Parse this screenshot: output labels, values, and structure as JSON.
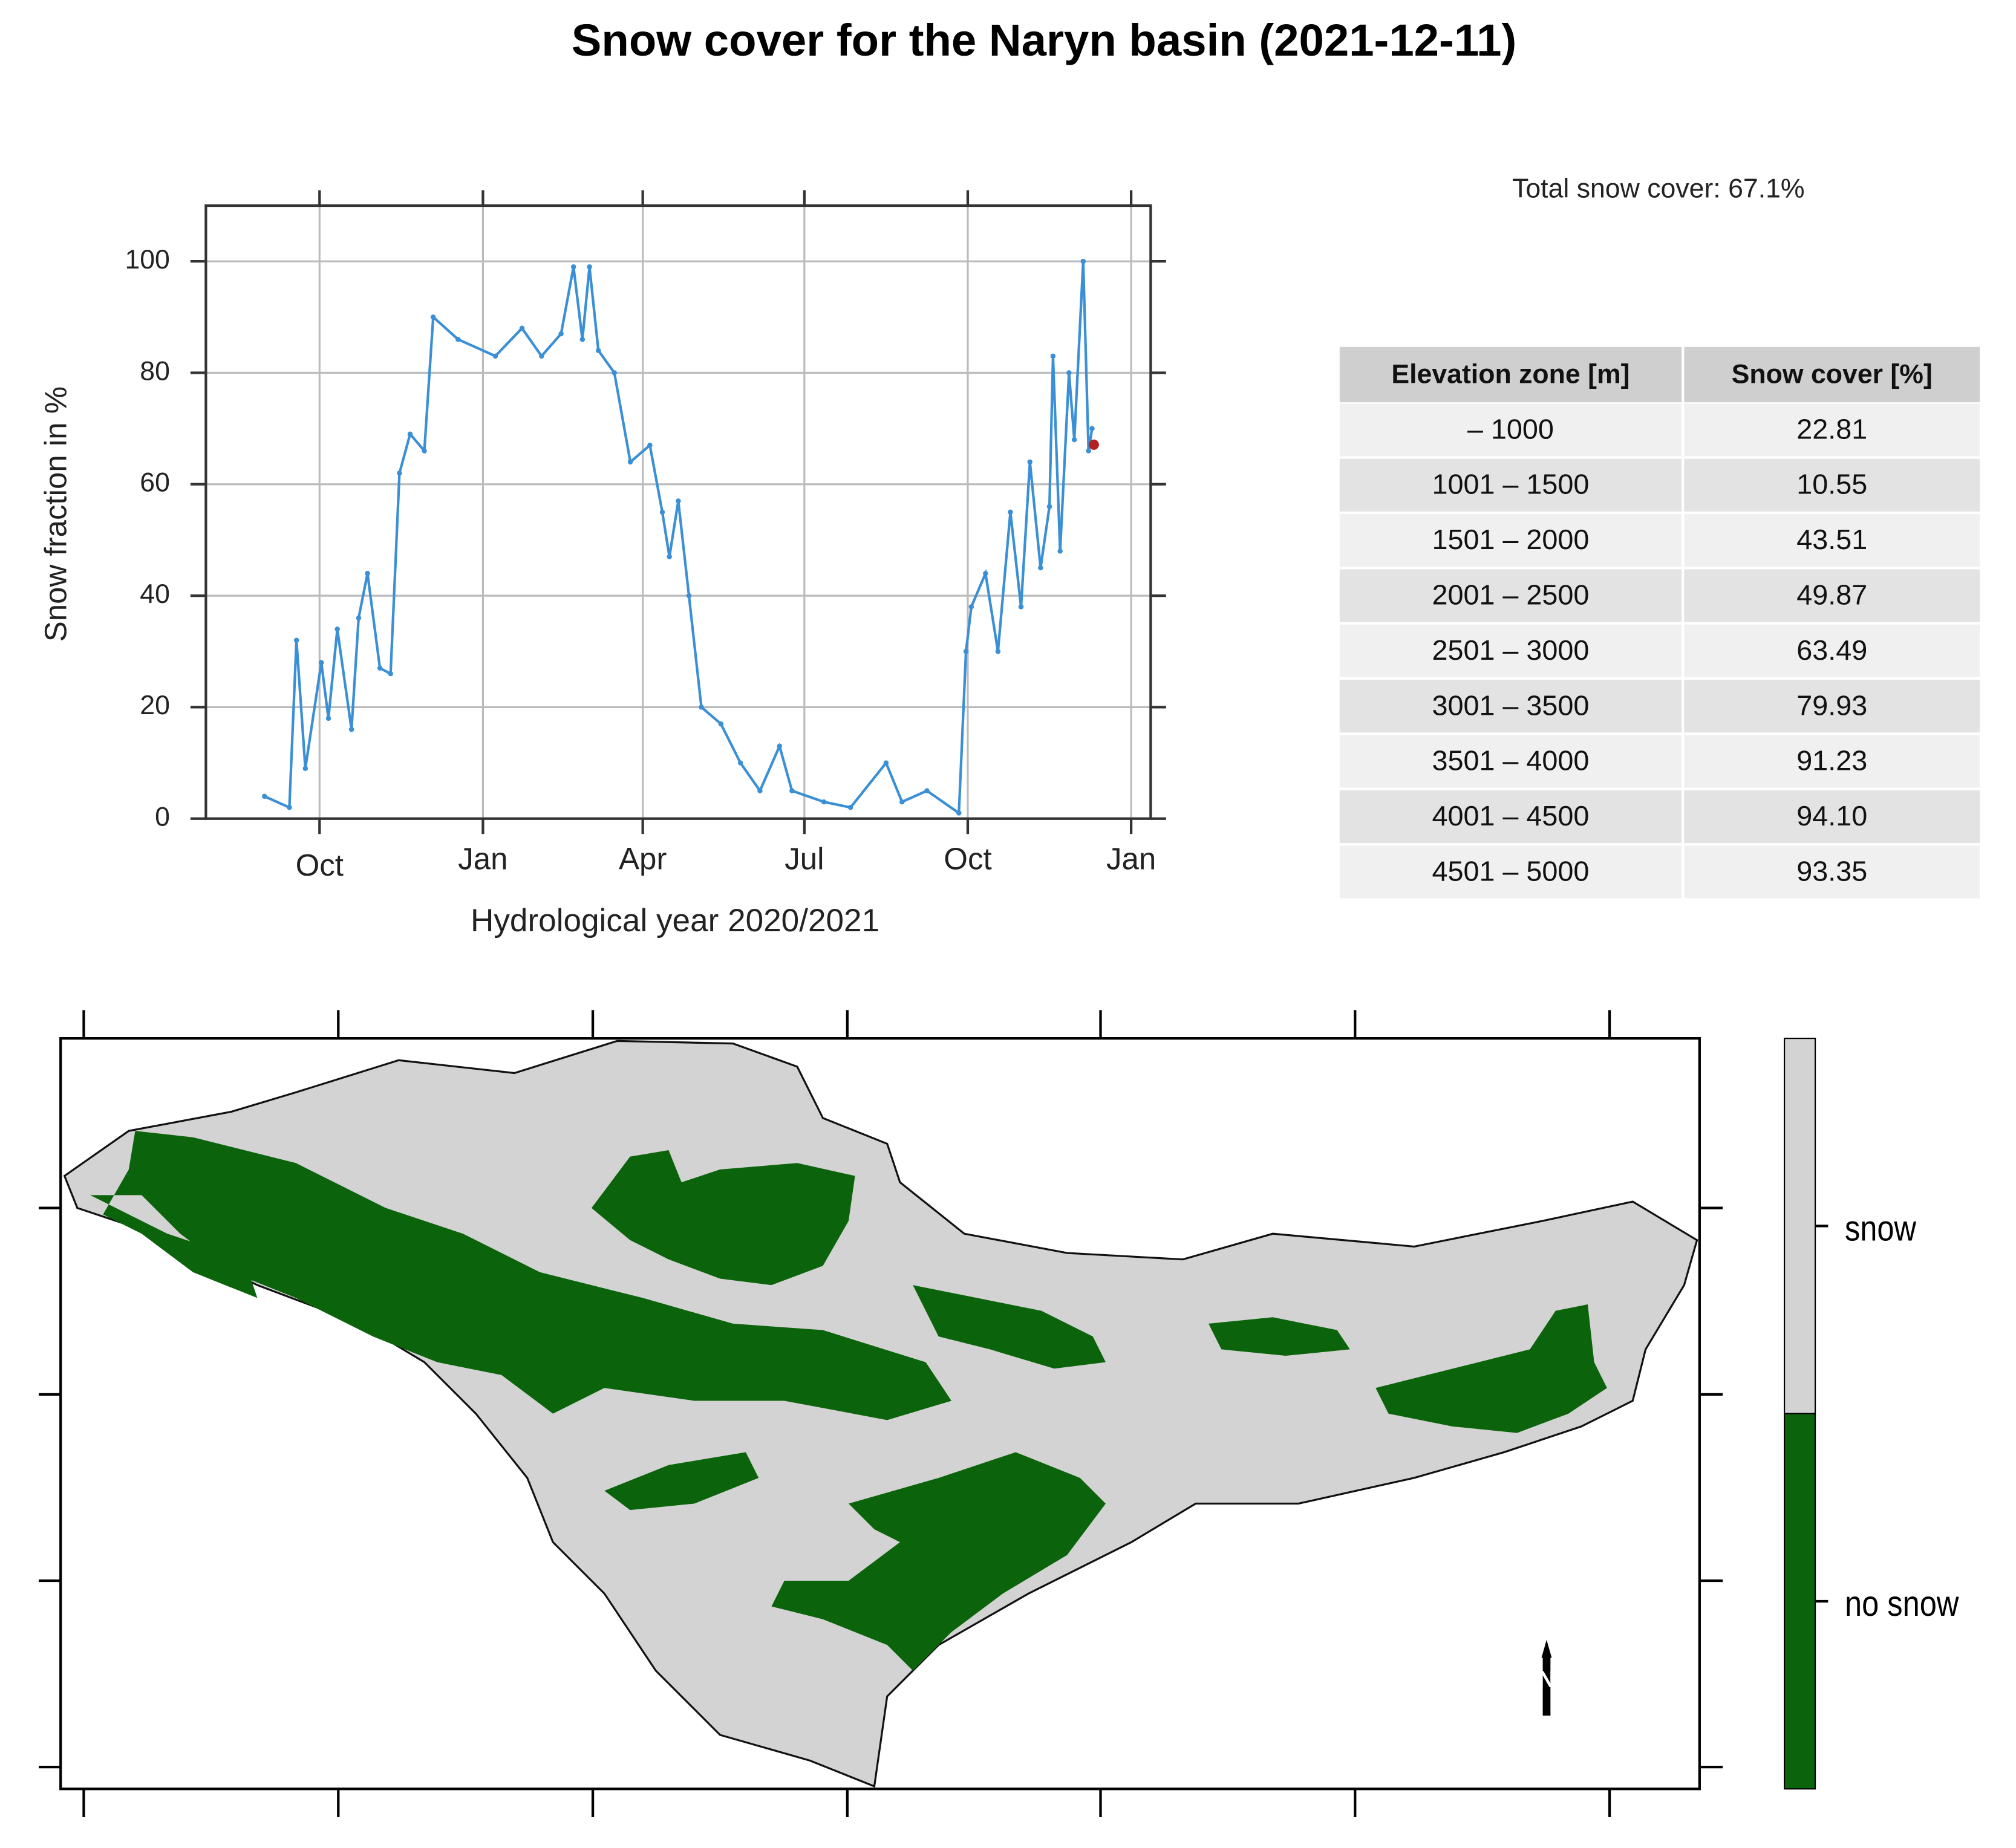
{
  "title": "Snow cover for the Naryn basin (2021-12-11)",
  "chart_data": {
    "type": "line",
    "y_label": "Snow fraction in %",
    "x_label": "Hydrological year 2020/2021",
    "color": "#3a8fd6",
    "grid": true,
    "x": [
      -1,
      13,
      17,
      22,
      31,
      35,
      40,
      48,
      52,
      57,
      64,
      70,
      75,
      81,
      89,
      94,
      108,
      129,
      144,
      155,
      166,
      173,
      178,
      182,
      187,
      196,
      205,
      216,
      223,
      227,
      232,
      238,
      245,
      256,
      267,
      278,
      289,
      296,
      314,
      329,
      349,
      358,
      372,
      390,
      394,
      397,
      405,
      412,
      419,
      425,
      430,
      436,
      441,
      443,
      447,
      452,
      455,
      460,
      463,
      465
    ],
    "values": [
      4,
      2,
      32,
      9,
      28,
      18,
      34,
      16,
      36,
      44,
      27,
      26,
      62,
      69,
      66,
      90,
      86,
      83,
      88,
      83,
      87,
      99,
      86,
      99,
      84,
      80,
      64,
      67,
      55,
      47,
      57,
      40,
      20,
      17,
      10,
      5,
      13,
      5,
      3,
      2,
      10,
      3,
      5,
      1,
      30,
      38,
      44,
      30,
      55,
      38,
      64,
      45,
      56,
      83,
      48,
      80,
      68,
      100,
      66,
      70
    ],
    "current": {
      "x": 466,
      "value": 67.1,
      "color": "#b22222"
    },
    "xlim": [
      -34,
      498
    ],
    "xticks": [
      {
        "value": 30,
        "label": "Oct"
      },
      {
        "value": 122,
        "label": "Jan"
      },
      {
        "value": 212,
        "label": "Apr"
      },
      {
        "value": 303,
        "label": "Jul"
      },
      {
        "value": 395,
        "label": "Oct"
      },
      {
        "value": 487,
        "label": "Jan"
      }
    ],
    "ylim": [
      0,
      110
    ],
    "yticks": [
      0,
      20,
      40,
      60,
      80,
      100
    ]
  },
  "total_snow_cover": "Total snow cover: 67.1%",
  "table": {
    "columns": [
      "Elevation zone [m]",
      "Snow cover [%]"
    ],
    "rows": [
      [
        "– 1000",
        "22.81"
      ],
      [
        "1001 – 1500",
        "10.55"
      ],
      [
        "1501 – 2000",
        "43.51"
      ],
      [
        "2001 – 2500",
        "49.87"
      ],
      [
        "2501 – 3000",
        "63.49"
      ],
      [
        "3001 – 3500",
        "79.93"
      ],
      [
        "3501 – 4000",
        "91.23"
      ],
      [
        "4001 – 4500",
        "94.10"
      ],
      [
        "4501 – 5000",
        "93.35"
      ]
    ]
  },
  "map": {
    "legend": [
      {
        "label": "snow",
        "color": "#d3d3d3"
      },
      {
        "label": "no snow",
        "color": "#0b640b"
      }
    ]
  }
}
